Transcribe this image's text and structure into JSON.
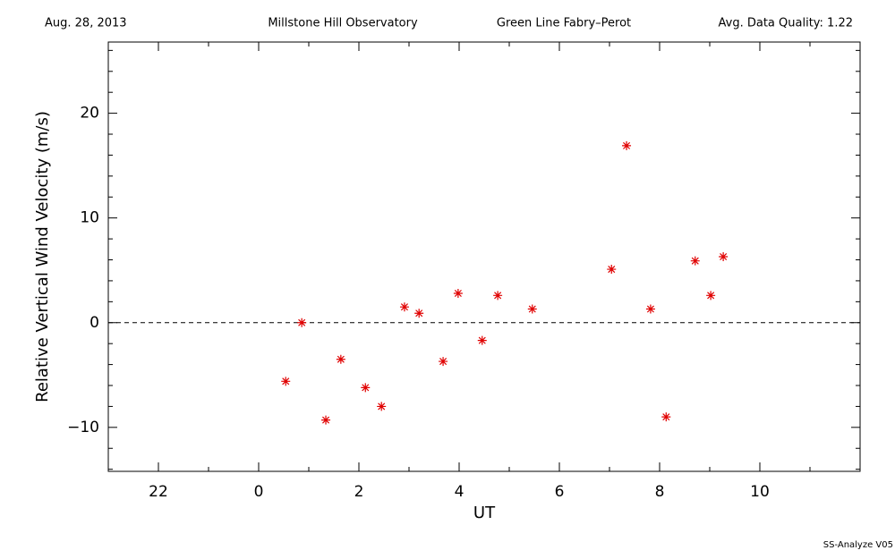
{
  "chart_data": {
    "type": "scatter",
    "date": "Aug. 28, 2013",
    "site": "Millstone Hill Observatory",
    "instrument": "Green Line Fabry–Perot",
    "quality": "Avg. Data Quality: 1.22",
    "footer": "SS-Analyze V05",
    "xlabel": "UT",
    "ylabel": "Relative Vertical Wind Velocity (m/s)",
    "color": "#e00000",
    "xlim": [
      -3,
      12
    ],
    "ylim": [
      -14.2,
      26.8
    ],
    "xticks": [
      {
        "value": -2,
        "label": "22"
      },
      0,
      2,
      4,
      6,
      8,
      10
    ],
    "yticks": [
      {
        "value": -10,
        "label": "−10"
      },
      0,
      10,
      20
    ],
    "xminor_ticks": [
      -3,
      -1,
      1,
      3,
      5,
      7,
      9,
      11
    ],
    "yminor_ticks": [
      -14,
      -12,
      -8,
      -6,
      -4,
      -2,
      2,
      4,
      6,
      8,
      12,
      14,
      16,
      18,
      22,
      24,
      26
    ],
    "hline": 0,
    "x": [
      0.54,
      0.86,
      1.34,
      1.64,
      2.13,
      2.45,
      2.91,
      3.2,
      3.68,
      3.98,
      4.46,
      4.77,
      5.46,
      7.04,
      7.34,
      7.82,
      8.13,
      8.71,
      9.02,
      9.27
    ],
    "values": [
      -5.6,
      0,
      -9.3,
      -3.5,
      -6.2,
      -8.0,
      1.5,
      0.9,
      -3.7,
      2.8,
      -1.7,
      2.6,
      1.3,
      5.1,
      16.9,
      1.3,
      -9.0,
      5.9,
      2.6,
      6.3
    ]
  }
}
